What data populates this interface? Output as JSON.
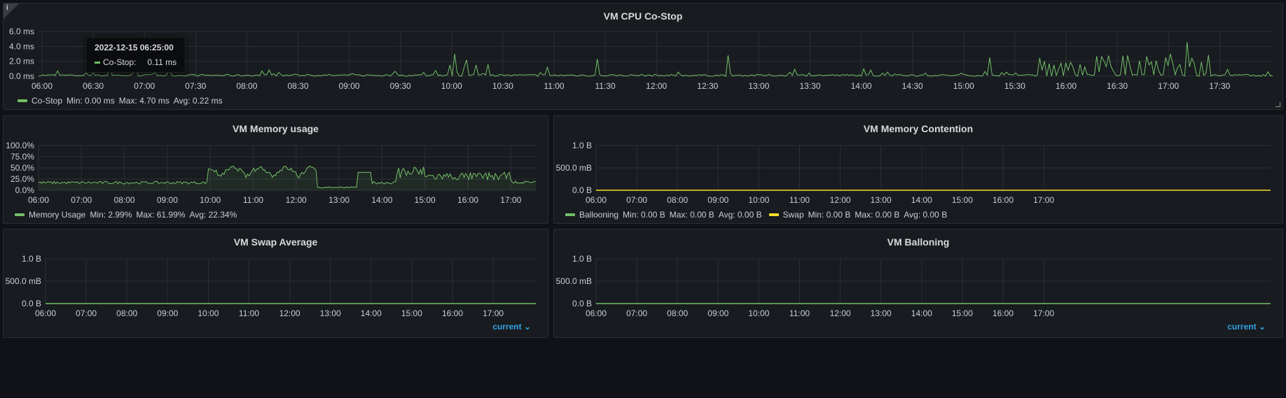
{
  "colors": {
    "green": "#73bf69",
    "yellow": "#fade2a",
    "grid": "#2c2f35",
    "accent": "#33a2e5"
  },
  "panels": {
    "cpu": {
      "title": "VM CPU Co-Stop",
      "info_icon": "info-icon",
      "y_ticks": [
        "6.0 ms",
        "4.0 ms",
        "2.0 ms",
        "0.0 ms"
      ],
      "x_ticks": [
        "06:00",
        "06:30",
        "07:00",
        "07:30",
        "08:00",
        "08:30",
        "09:00",
        "09:30",
        "10:00",
        "10:30",
        "11:00",
        "11:30",
        "12:00",
        "12:30",
        "13:00",
        "13:30",
        "14:00",
        "14:30",
        "15:00",
        "15:30",
        "16:00",
        "16:30",
        "17:00",
        "17:30"
      ],
      "legend": {
        "name": "Co-Stop",
        "min": "Min: 0.00 ms",
        "max": "Max: 4.70 ms",
        "avg": "Avg: 0.22 ms"
      },
      "tooltip": {
        "time": "2022-12-15 06:25:00",
        "series": "Co-Stop:",
        "value": "0.11 ms"
      }
    },
    "mem": {
      "title": "VM Memory usage",
      "y_ticks": [
        "100.0%",
        "75.0%",
        "50.0%",
        "25.0%",
        "0.0%"
      ],
      "x_ticks": [
        "06:00",
        "07:00",
        "08:00",
        "09:00",
        "10:00",
        "11:00",
        "12:00",
        "13:00",
        "14:00",
        "15:00",
        "16:00",
        "17:00"
      ],
      "legend": {
        "name": "Memory Usage",
        "min": "Min: 2.99%",
        "max": "Max: 61.99%",
        "avg": "Avg: 22.34%"
      }
    },
    "contention": {
      "title": "VM Memory Contention",
      "y_ticks": [
        "1.0 B",
        "500.0 mB",
        "0.0 B"
      ],
      "x_ticks": [
        "06:00",
        "07:00",
        "08:00",
        "09:00",
        "10:00",
        "11:00",
        "12:00",
        "13:00",
        "14:00",
        "15:00",
        "16:00",
        "17:00"
      ],
      "legend": [
        {
          "name": "Ballooning",
          "min": "Min: 0.00 B",
          "max": "Max: 0.00 B",
          "avg": "Avg: 0.00 B"
        },
        {
          "name": "Swap",
          "min": "Min: 0.00 B",
          "max": "Max: 0.00 B",
          "avg": "Avg: 0.00 B"
        }
      ]
    },
    "swap": {
      "title": "VM Swap Average",
      "y_ticks": [
        "1.0 B",
        "500.0 mB",
        "0.0 B"
      ],
      "x_ticks": [
        "06:00",
        "07:00",
        "08:00",
        "09:00",
        "10:00",
        "11:00",
        "12:00",
        "13:00",
        "14:00",
        "15:00",
        "16:00",
        "17:00"
      ],
      "current": "current"
    },
    "balloon": {
      "title": "VM Balloning",
      "y_ticks": [
        "1.0 B",
        "500.0 mB",
        "0.0 B"
      ],
      "x_ticks": [
        "06:00",
        "07:00",
        "08:00",
        "09:00",
        "10:00",
        "11:00",
        "12:00",
        "13:00",
        "14:00",
        "15:00",
        "16:00",
        "17:00"
      ],
      "current": "current"
    }
  }
}
